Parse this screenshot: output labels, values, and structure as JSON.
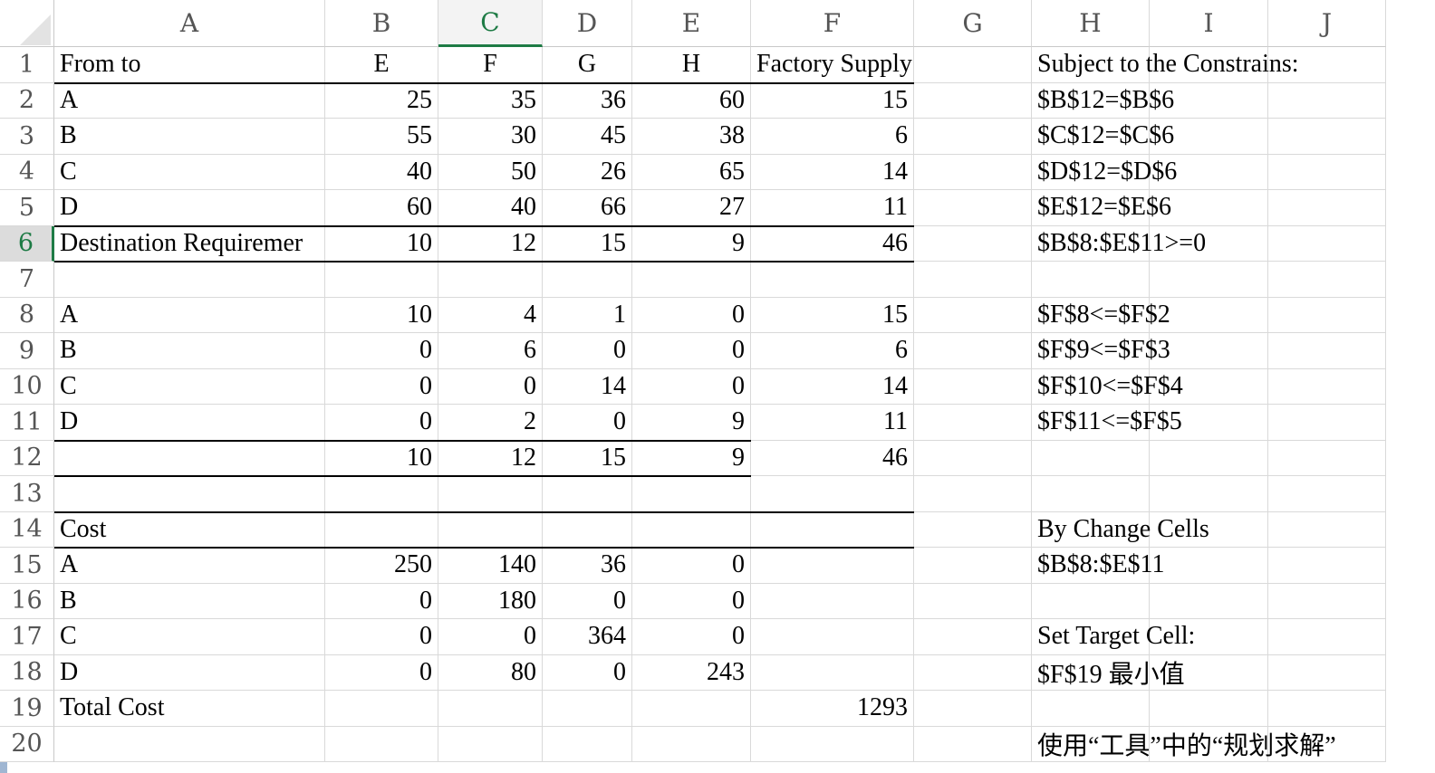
{
  "columns": [
    "A",
    "B",
    "C",
    "D",
    "E",
    "F",
    "G",
    "H",
    "I",
    "J"
  ],
  "rows": [
    "1",
    "2",
    "3",
    "4",
    "5",
    "6",
    "7",
    "8",
    "9",
    "10",
    "11",
    "12",
    "13",
    "14",
    "15",
    "16",
    "17",
    "18",
    "19",
    "20"
  ],
  "selected_column": "C",
  "selected_row": "6",
  "cells": {
    "A1": "From to",
    "B1": "E",
    "C1": "F",
    "D1": "G",
    "E1": "H",
    "F1": "Factory Supply",
    "H1": "Subject to the Constrains:",
    "A2": "A",
    "B2": "25",
    "C2": "35",
    "D2": "36",
    "E2": "60",
    "F2": "15",
    "H2": "$B$12=$B$6",
    "A3": "B",
    "B3": "55",
    "C3": "30",
    "D3": "45",
    "E3": "38",
    "F3": "6",
    "H3": "$C$12=$C$6",
    "A4": "C",
    "B4": "40",
    "C4": "50",
    "D4": "26",
    "E4": "65",
    "F4": "14",
    "H4": "$D$12=$D$6",
    "A5": "D",
    "B5": "60",
    "C5": "40",
    "D5": "66",
    "E5": "27",
    "F5": "11",
    "H5": "$E$12=$E$6",
    "A6": "Destination Requiremer",
    "B6": "10",
    "C6": "12",
    "D6": "15",
    "E6": "9",
    "F6": "46",
    "H6": "$B$8:$E$11>=0",
    "A8": "A",
    "B8": "10",
    "C8": "4",
    "D8": "1",
    "E8": "0",
    "F8": "15",
    "H8": "$F$8<=$F$2",
    "A9": "B",
    "B9": "0",
    "C9": "6",
    "D9": "0",
    "E9": "0",
    "F9": "6",
    "H9": "$F$9<=$F$3",
    "A10": "C",
    "B10": "0",
    "C10": "0",
    "D10": "14",
    "E10": "0",
    "F10": "14",
    "H10": "$F$10<=$F$4",
    "A11": "D",
    "B11": "0",
    "C11": "2",
    "D11": "0",
    "E11": "9",
    "F11": "11",
    "H11": "$F$11<=$F$5",
    "B12": "10",
    "C12": "12",
    "D12": "15",
    "E12": "9",
    "F12": "46",
    "A14": "Cost",
    "H14": "By Change Cells",
    "A15": "A",
    "B15": "250",
    "C15": "140",
    "D15": "36",
    "E15": "0",
    "H15": "$B$8:$E$11",
    "A16": "B",
    "B16": "0",
    "C16": "180",
    "D16": "0",
    "E16": "0",
    "A17": "C",
    "B17": "0",
    "C17": "0",
    "D17": "364",
    "E17": "0",
    "H17": "Set Target Cell:",
    "A18": "D",
    "B18": "0",
    "C18": "80",
    "D18": "0",
    "E18": "243",
    "H18": "$F$19 最小值",
    "A19": "Total Cost",
    "F19": "1293",
    "H20": "使用“工具”中的“规划求解”"
  }
}
